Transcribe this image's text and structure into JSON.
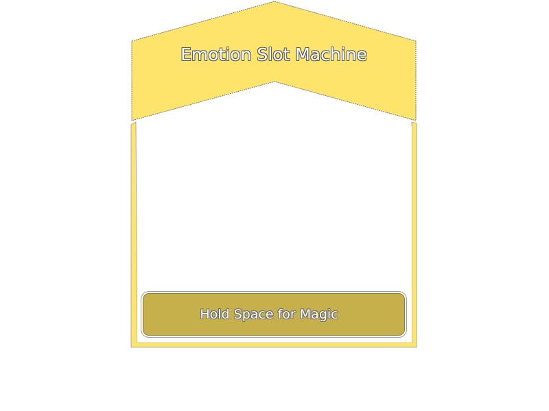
{
  "machine": {
    "title": "Emotion Slot Machine",
    "action_label": "Hold Space for Magic",
    "colors": {
      "body": "#fee46a",
      "button": "#c5b04c",
      "outline": "#7a7a7a"
    }
  }
}
